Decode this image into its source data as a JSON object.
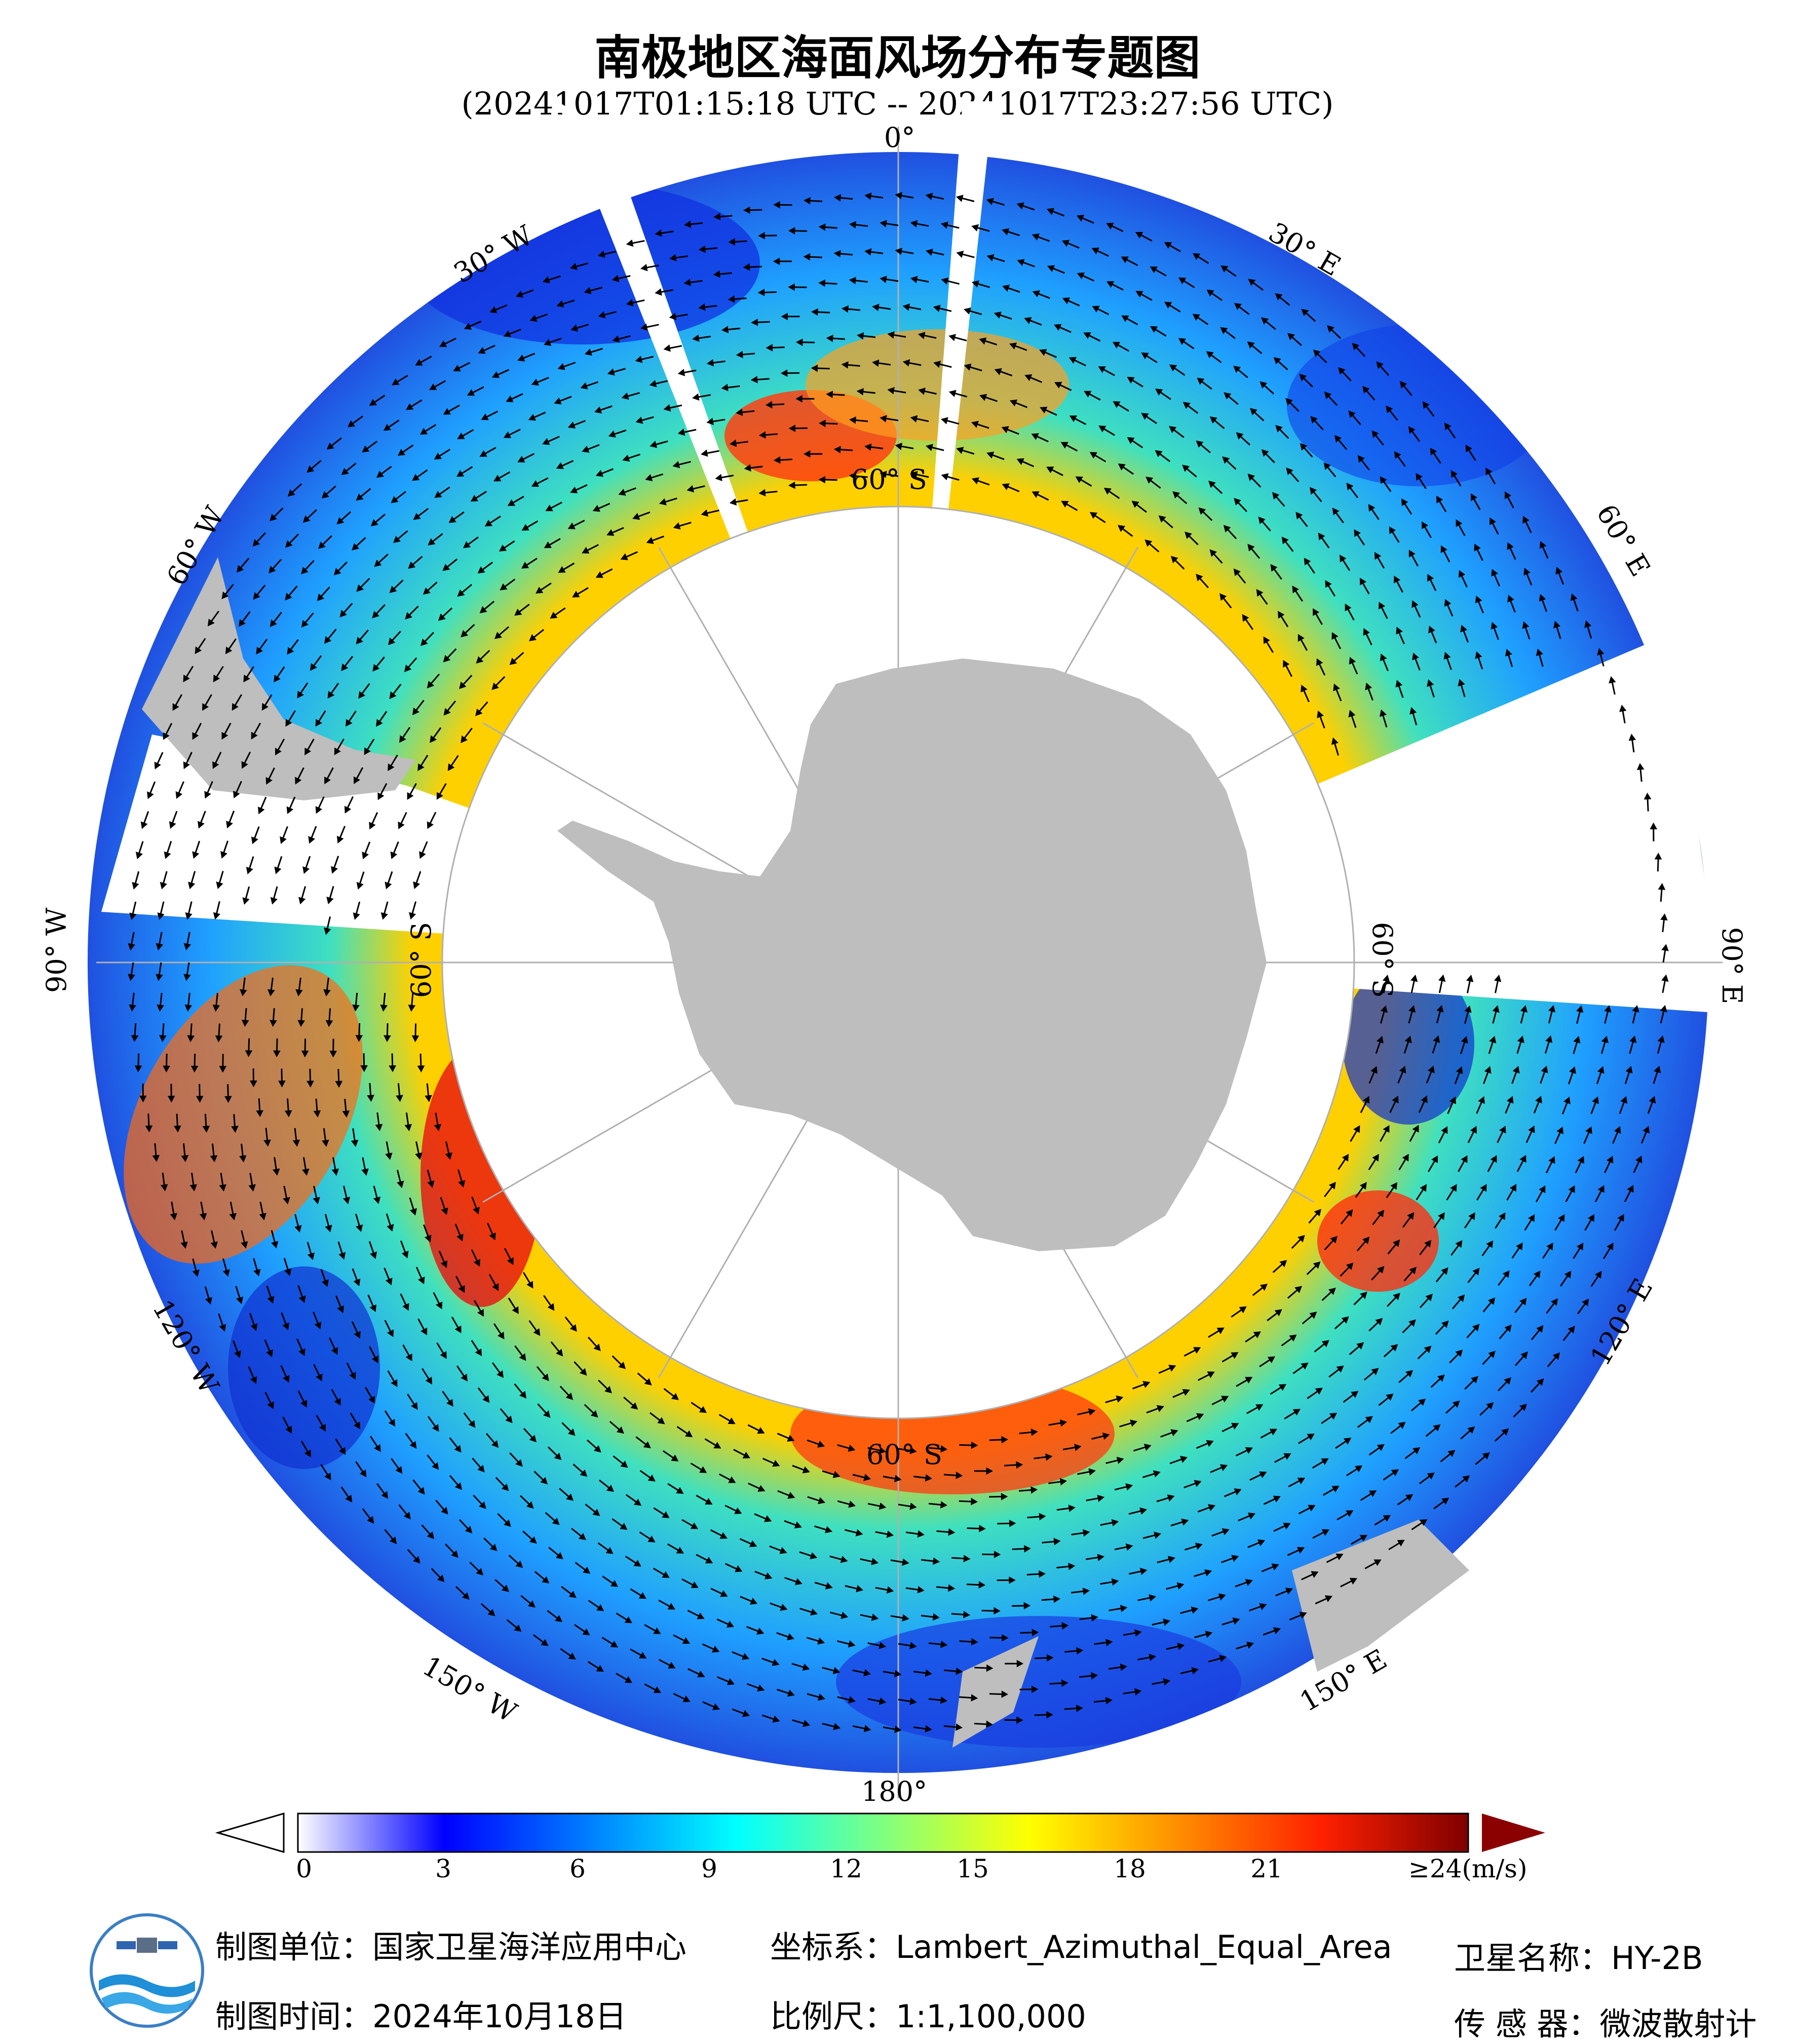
{
  "title": "南极地区海面风场分布专题图",
  "subtitle": "(20241017T01:15:18 UTC -- 20241017T23:27:56 UTC)",
  "map": {
    "longitude_labels": [
      "0°",
      "30° E",
      "60° E",
      "90° E",
      "120° E",
      "150° E",
      "180°",
      "150° W",
      "120° W",
      "90° W",
      "60° W",
      "30° W"
    ],
    "latitude_label": "60° S",
    "colors": {
      "land": "#bebebe",
      "grid": "#b0b0b0",
      "arrow": "#000000"
    }
  },
  "colorbar": {
    "ticks": [
      "0",
      "3",
      "6",
      "9",
      "12",
      "15",
      "18",
      "21",
      "≥24(m/s)"
    ],
    "min": 0,
    "max": 24,
    "colors": [
      "#ffffff",
      "#0000ff",
      "#00ffff",
      "#ffff00",
      "#ff0000",
      "#7f0000"
    ]
  },
  "footer": {
    "unit_label": "制图单位：国家卫星海洋应用中心",
    "date_label": "制图时间：2024年10月18日",
    "crs_label": "坐标系：Lambert_Azimuthal_Equal_Area",
    "scale_label": "比例尺：1:1,100,000",
    "satellite_label": "卫星名称：HY-2B",
    "sensor_label": "传 感 器：微波散射计"
  }
}
